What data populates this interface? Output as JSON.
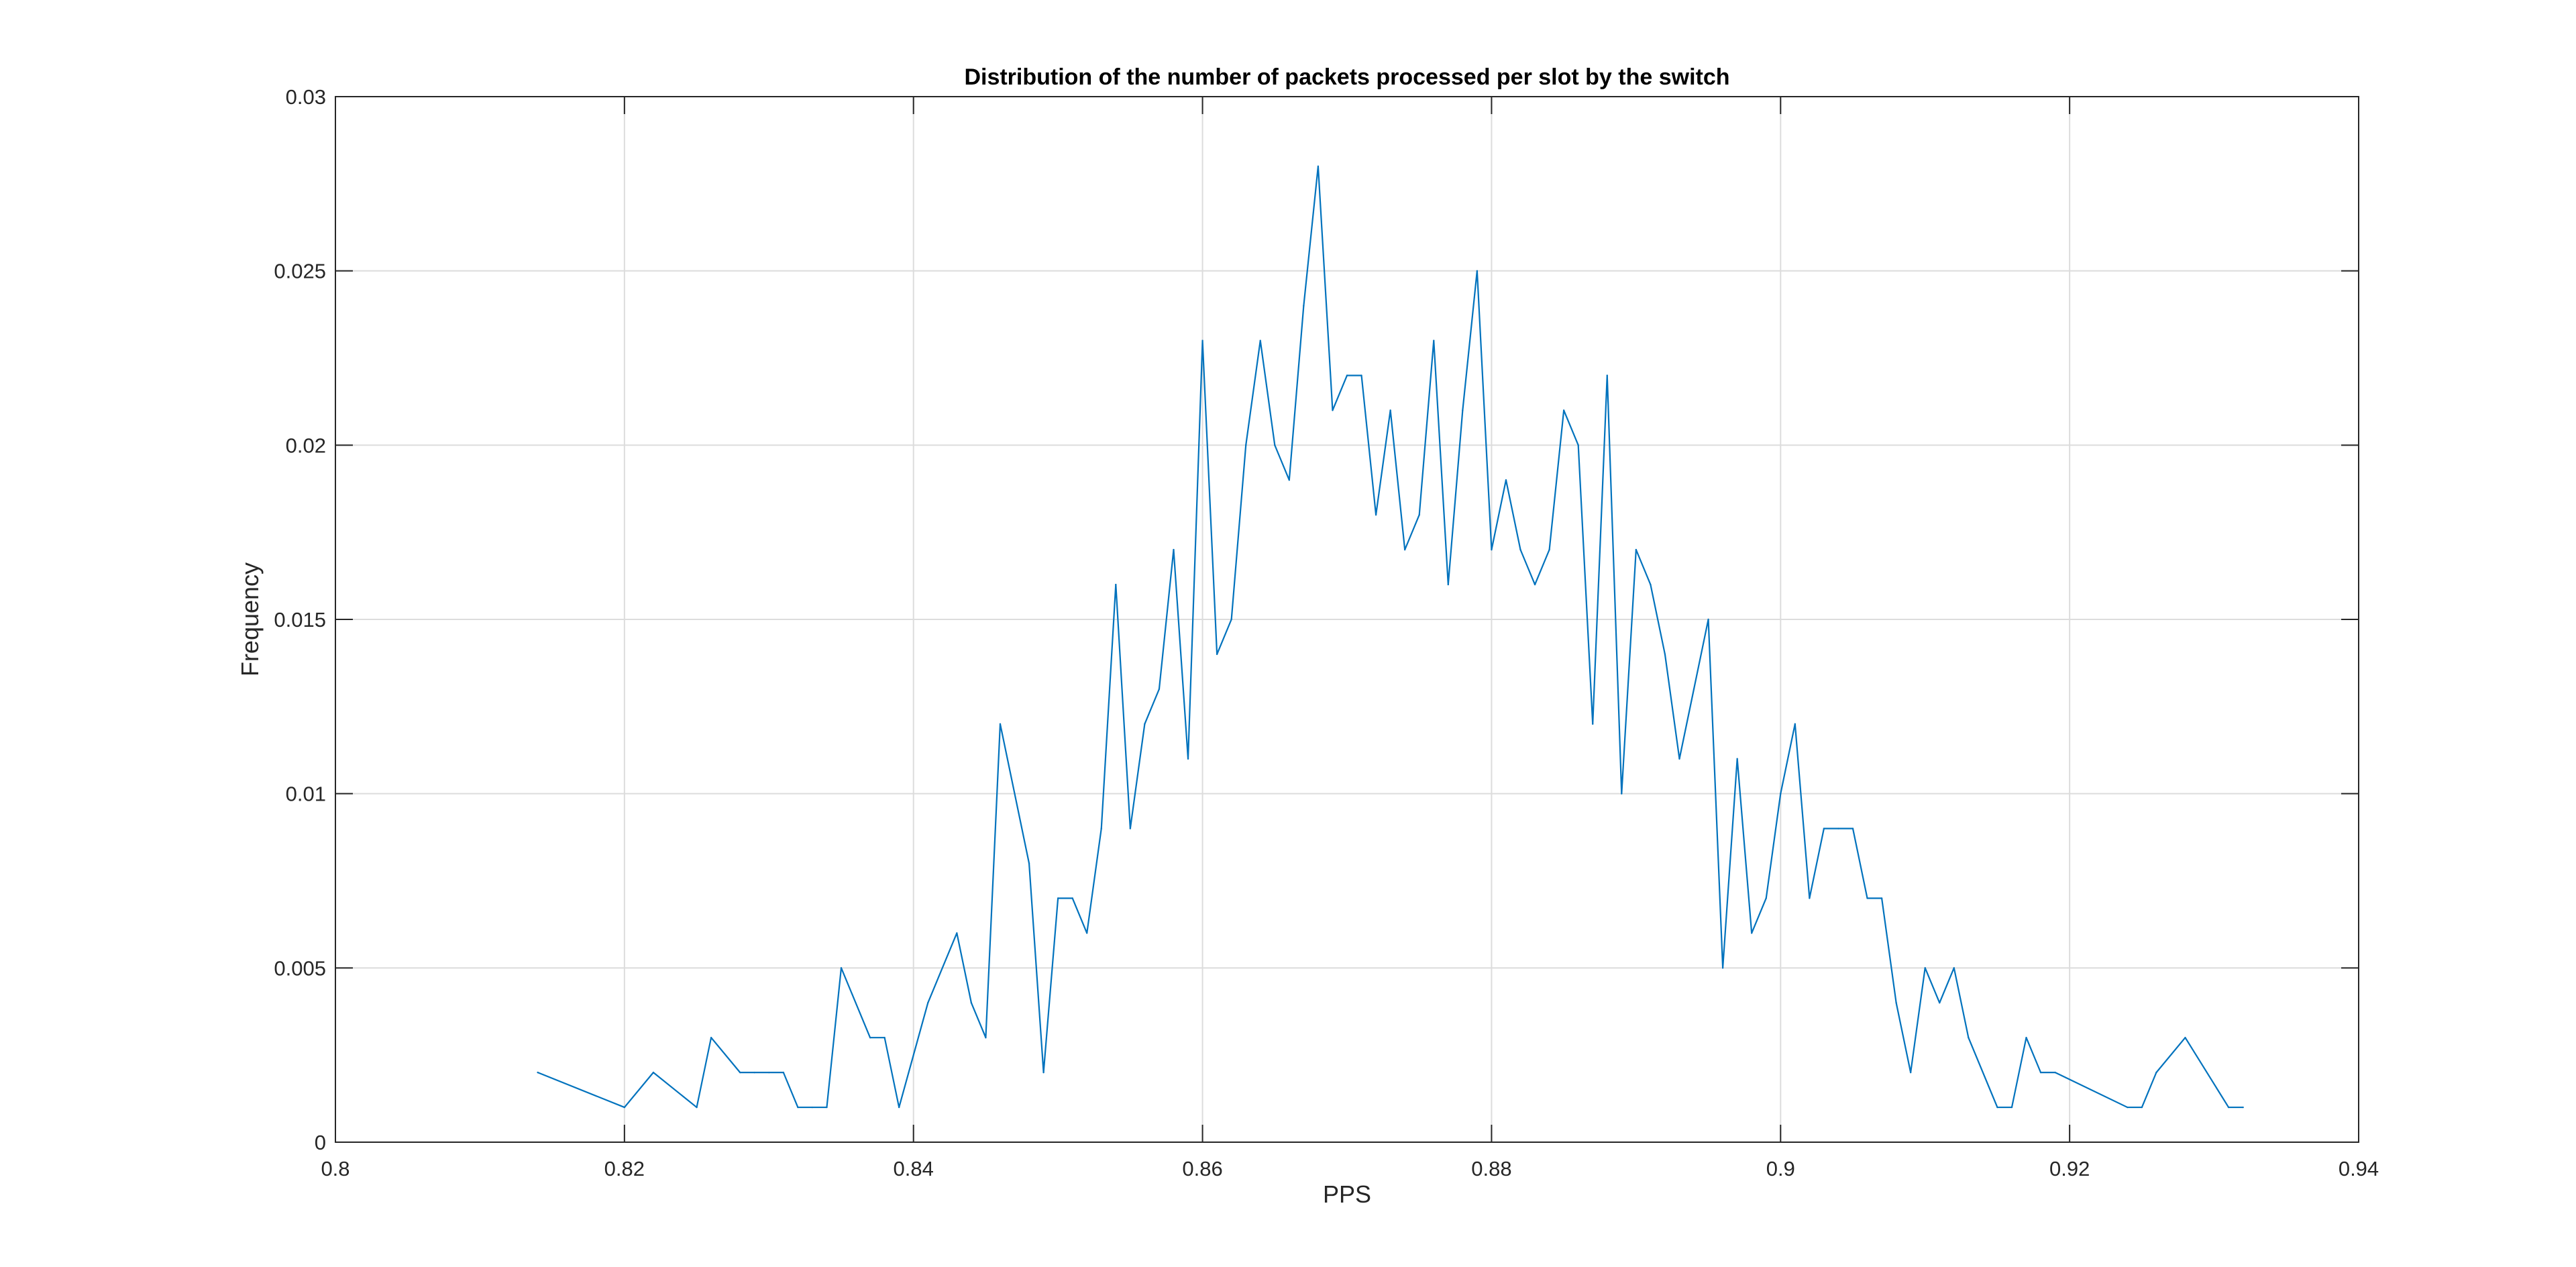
{
  "chart_data": {
    "type": "line",
    "title": "Distribution of the number of packets processed per slot by the switch",
    "xlabel": "PPS",
    "ylabel": "Frequency",
    "xlim": [
      0.8,
      0.94
    ],
    "ylim": [
      0,
      0.03
    ],
    "xticks": [
      0.8,
      0.82,
      0.84,
      0.86,
      0.88,
      0.9,
      0.92,
      0.94
    ],
    "xtick_labels": [
      "0.8",
      "0.82",
      "0.84",
      "0.86",
      "0.88",
      "0.9",
      "0.92",
      "0.94"
    ],
    "yticks": [
      0,
      0.005,
      0.01,
      0.015,
      0.02,
      0.025,
      0.03
    ],
    "ytick_labels": [
      "0",
      "0.005",
      "0.01",
      "0.015",
      "0.02",
      "0.025",
      "0.03"
    ],
    "grid": true,
    "box": true,
    "line_color": "#0072BD",
    "series": [
      {
        "x": [
          0.814,
          0.82,
          0.822,
          0.825,
          0.826,
          0.828,
          0.829,
          0.83,
          0.831,
          0.832,
          0.833,
          0.834,
          0.835,
          0.837,
          0.838,
          0.839,
          0.841,
          0.843,
          0.844,
          0.845,
          0.846,
          0.848,
          0.849,
          0.85,
          0.851,
          0.852,
          0.853,
          0.854,
          0.855,
          0.856,
          0.857,
          0.858,
          0.859,
          0.86,
          0.861,
          0.862,
          0.863,
          0.864,
          0.865,
          0.866,
          0.867,
          0.868,
          0.869,
          0.87,
          0.871,
          0.872,
          0.873,
          0.874,
          0.875,
          0.876,
          0.877,
          0.878,
          0.879,
          0.88,
          0.881,
          0.882,
          0.883,
          0.884,
          0.885,
          0.886,
          0.887,
          0.888,
          0.889,
          0.89,
          0.891,
          0.892,
          0.893,
          0.894,
          0.895,
          0.896,
          0.897,
          0.898,
          0.899,
          0.9,
          0.901,
          0.902,
          0.903,
          0.904,
          0.905,
          0.906,
          0.907,
          0.908,
          0.909,
          0.91,
          0.911,
          0.912,
          0.913,
          0.915,
          0.916,
          0.917,
          0.918,
          0.919,
          0.924,
          0.925,
          0.926,
          0.928,
          0.931,
          0.932
        ],
        "y": [
          0.002,
          0.001,
          0.002,
          0.001,
          0.003,
          0.002,
          0.002,
          0.002,
          0.002,
          0.001,
          0.001,
          0.001,
          0.005,
          0.003,
          0.003,
          0.001,
          0.004,
          0.006,
          0.004,
          0.003,
          0.012,
          0.008,
          0.002,
          0.007,
          0.007,
          0.006,
          0.009,
          0.016,
          0.009,
          0.012,
          0.013,
          0.017,
          0.011,
          0.023,
          0.014,
          0.015,
          0.02,
          0.023,
          0.02,
          0.019,
          0.024,
          0.028,
          0.021,
          0.022,
          0.022,
          0.018,
          0.021,
          0.017,
          0.018,
          0.023,
          0.016,
          0.021,
          0.025,
          0.017,
          0.019,
          0.017,
          0.016,
          0.017,
          0.021,
          0.02,
          0.012,
          0.022,
          0.01,
          0.017,
          0.016,
          0.014,
          0.011,
          0.013,
          0.015,
          0.005,
          0.011,
          0.006,
          0.007,
          0.01,
          0.012,
          0.007,
          0.009,
          0.009,
          0.009,
          0.007,
          0.007,
          0.004,
          0.002,
          0.005,
          0.004,
          0.005,
          0.003,
          0.001,
          0.001,
          0.003,
          0.002,
          0.002,
          0.001,
          0.001,
          0.002,
          0.003,
          0.001,
          0.001
        ]
      }
    ]
  }
}
